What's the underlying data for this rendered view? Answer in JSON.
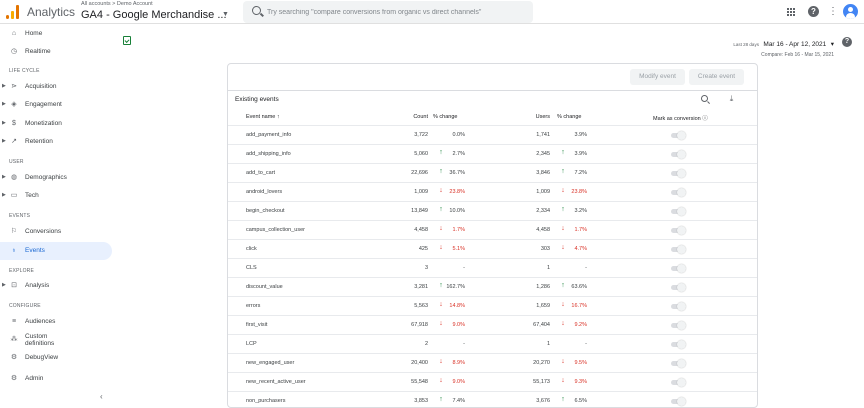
{
  "header": {
    "app_title": "Analytics",
    "breadcrumb": "All accounts > Demo Account",
    "property": "GA4 - Google Merchandise ...",
    "search_placeholder": "Try searching \"compare conversions from organic vs direct channels\""
  },
  "sidebar": {
    "top_items": [
      {
        "label": "Home",
        "icon": "home-icon"
      },
      {
        "label": "Realtime",
        "icon": "clock-icon"
      }
    ],
    "lifecycle_title": "LIFE CYCLE",
    "lifecycle": [
      {
        "label": "Acquisition",
        "icon": "acquisition-icon"
      },
      {
        "label": "Engagement",
        "icon": "engagement-icon"
      },
      {
        "label": "Monetization",
        "icon": "monetization-icon"
      },
      {
        "label": "Retention",
        "icon": "retention-icon"
      }
    ],
    "user_title": "USER",
    "user": [
      {
        "label": "Demographics",
        "icon": "globe-icon"
      },
      {
        "label": "Tech",
        "icon": "tech-icon"
      }
    ],
    "events_title": "EVENTS",
    "events": [
      {
        "label": "Conversions",
        "icon": "flag-icon"
      },
      {
        "label": "Events",
        "icon": "events-icon",
        "active": true
      }
    ],
    "explore_title": "EXPLORE",
    "explore": [
      {
        "label": "Analysis",
        "icon": "analysis-icon"
      }
    ],
    "configure_title": "CONFIGURE",
    "configure": [
      {
        "label": "Audiences",
        "icon": "audiences-icon"
      },
      {
        "label": "Custom definitions",
        "line1": "Custom",
        "line2": "definitions",
        "icon": "custom-definitions-icon"
      },
      {
        "label": "DebugView",
        "icon": "debug-icon"
      }
    ],
    "admin": {
      "label": "Admin",
      "icon": "admin-gear-icon"
    }
  },
  "date_range": {
    "last_days": "Last 28 days",
    "dates": "Mar 16 - Apr 12, 2021",
    "compare": "Compare: Feb 16 - Mar 15, 2021"
  },
  "card": {
    "modify_label": "Modify event",
    "create_label": "Create event",
    "title": "Existing events"
  },
  "table": {
    "headers": {
      "event_name": "Event name",
      "count": "Count",
      "count_change": "% change",
      "users": "Users",
      "users_change": "% change",
      "mark_conversion": "Mark as conversion"
    },
    "rows": [
      {
        "name": "add_payment_info",
        "count": "3,722",
        "c_dir": "",
        "c_pct": "0.0%",
        "users": "1,741",
        "u_dir": "",
        "u_pct": "3.9%"
      },
      {
        "name": "add_shipping_info",
        "count": "5,060",
        "c_dir": "up",
        "c_pct": "2.7%",
        "users": "2,345",
        "u_dir": "up",
        "u_pct": "3.9%"
      },
      {
        "name": "add_to_cart",
        "count": "22,696",
        "c_dir": "up",
        "c_pct": "36.7%",
        "users": "3,846",
        "u_dir": "up",
        "u_pct": "7.2%"
      },
      {
        "name": "android_lovers",
        "count": "1,009",
        "c_dir": "down",
        "c_pct": "23.8%",
        "users": "1,009",
        "u_dir": "down",
        "u_pct": "23.8%"
      },
      {
        "name": "begin_checkout",
        "count": "13,849",
        "c_dir": "up",
        "c_pct": "10.0%",
        "users": "2,334",
        "u_dir": "up",
        "u_pct": "3.2%"
      },
      {
        "name": "campus_collection_user",
        "count": "4,458",
        "c_dir": "down",
        "c_pct": "1.7%",
        "users": "4,458",
        "u_dir": "down",
        "u_pct": "1.7%"
      },
      {
        "name": "click",
        "count": "425",
        "c_dir": "down",
        "c_pct": "5.1%",
        "users": "303",
        "u_dir": "down",
        "u_pct": "4.7%"
      },
      {
        "name": "CLS",
        "count": "3",
        "c_dir": "",
        "c_pct": "-",
        "users": "1",
        "u_dir": "",
        "u_pct": "-"
      },
      {
        "name": "discount_value",
        "count": "3,281",
        "c_dir": "up",
        "c_pct": "162.7%",
        "users": "1,286",
        "u_dir": "up",
        "u_pct": "63.6%"
      },
      {
        "name": "errors",
        "count": "5,563",
        "c_dir": "down",
        "c_pct": "14.8%",
        "users": "1,659",
        "u_dir": "down",
        "u_pct": "16.7%"
      },
      {
        "name": "first_visit",
        "count": "67,918",
        "c_dir": "down",
        "c_pct": "9.0%",
        "users": "67,404",
        "u_dir": "down",
        "u_pct": "9.2%"
      },
      {
        "name": "LCP",
        "count": "2",
        "c_dir": "",
        "c_pct": "-",
        "users": "1",
        "u_dir": "",
        "u_pct": "-"
      },
      {
        "name": "new_engaged_user",
        "count": "20,400",
        "c_dir": "down",
        "c_pct": "8.9%",
        "users": "20,270",
        "u_dir": "down",
        "u_pct": "9.5%"
      },
      {
        "name": "new_recent_active_user",
        "count": "55,548",
        "c_dir": "down",
        "c_pct": "9.0%",
        "users": "55,173",
        "u_dir": "down",
        "u_pct": "9.3%"
      },
      {
        "name": "non_purchasers",
        "count": "3,853",
        "c_dir": "up",
        "c_pct": "7.4%",
        "users": "3,676",
        "u_dir": "up",
        "u_pct": "6.5%"
      }
    ]
  }
}
